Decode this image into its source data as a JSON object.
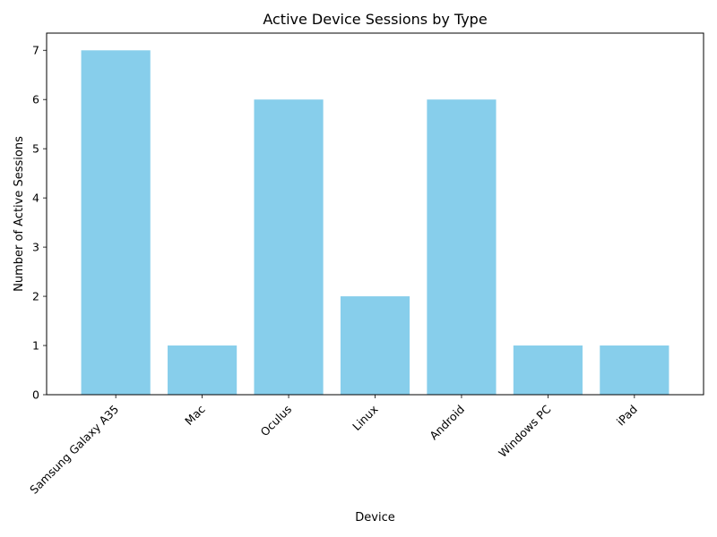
{
  "chart_data": {
    "type": "bar",
    "title": "Active Device Sessions by Type",
    "xlabel": "Device",
    "ylabel": "Number of Active Sessions",
    "categories": [
      "Samsung Galaxy A35",
      "Mac",
      "Oculus",
      "Linux",
      "Android",
      "Windows PC",
      "iPad"
    ],
    "values": [
      7,
      1,
      6,
      2,
      6,
      1,
      1
    ],
    "ylim": [
      0,
      7.35
    ],
    "yticks": [
      0,
      1,
      2,
      3,
      4,
      5,
      6,
      7
    ],
    "bar_color": "#87ceeb",
    "grid": false,
    "xtick_rotation": "45 degrees"
  }
}
